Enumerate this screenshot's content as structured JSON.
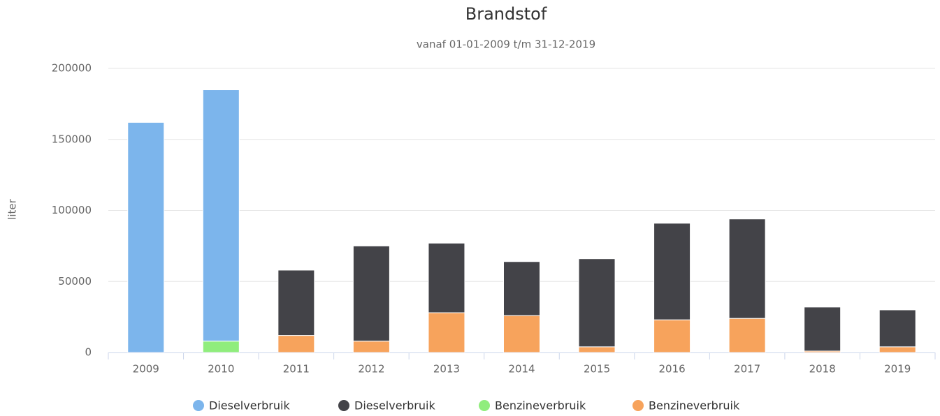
{
  "chart_data": {
    "type": "stacked_bar",
    "title": "Brandstof",
    "subtitle": "vanaf 01-01-2009 t/m 31-12-2019",
    "y_label": "liter",
    "categories": [
      "2009",
      "2010",
      "2011",
      "2012",
      "2013",
      "2014",
      "2015",
      "2016",
      "2017",
      "2018",
      "2019"
    ],
    "series": [
      {
        "name": "Dieselverbruik",
        "color": "#7cb5ec",
        "values": [
          162000,
          177000,
          null,
          null,
          null,
          null,
          null,
          null,
          null,
          null,
          null
        ]
      },
      {
        "name": "Dieselverbruik",
        "color": "#434348",
        "values": [
          null,
          null,
          46000,
          67000,
          49000,
          38000,
          62000,
          68000,
          70000,
          31000,
          26000
        ]
      },
      {
        "name": "Benzineverbruik",
        "color": "#90ed7d",
        "values": [
          null,
          8000,
          null,
          null,
          null,
          null,
          null,
          null,
          null,
          null,
          null
        ]
      },
      {
        "name": "Benzineverbruik",
        "color": "#f7a35c",
        "values": [
          null,
          null,
          12000,
          8000,
          28000,
          26000,
          4000,
          23000,
          24000,
          1000,
          4000
        ]
      }
    ],
    "ylim": [
      0,
      200000
    ],
    "yticks": [
      0,
      50000,
      100000,
      150000,
      200000
    ],
    "grid": true
  }
}
